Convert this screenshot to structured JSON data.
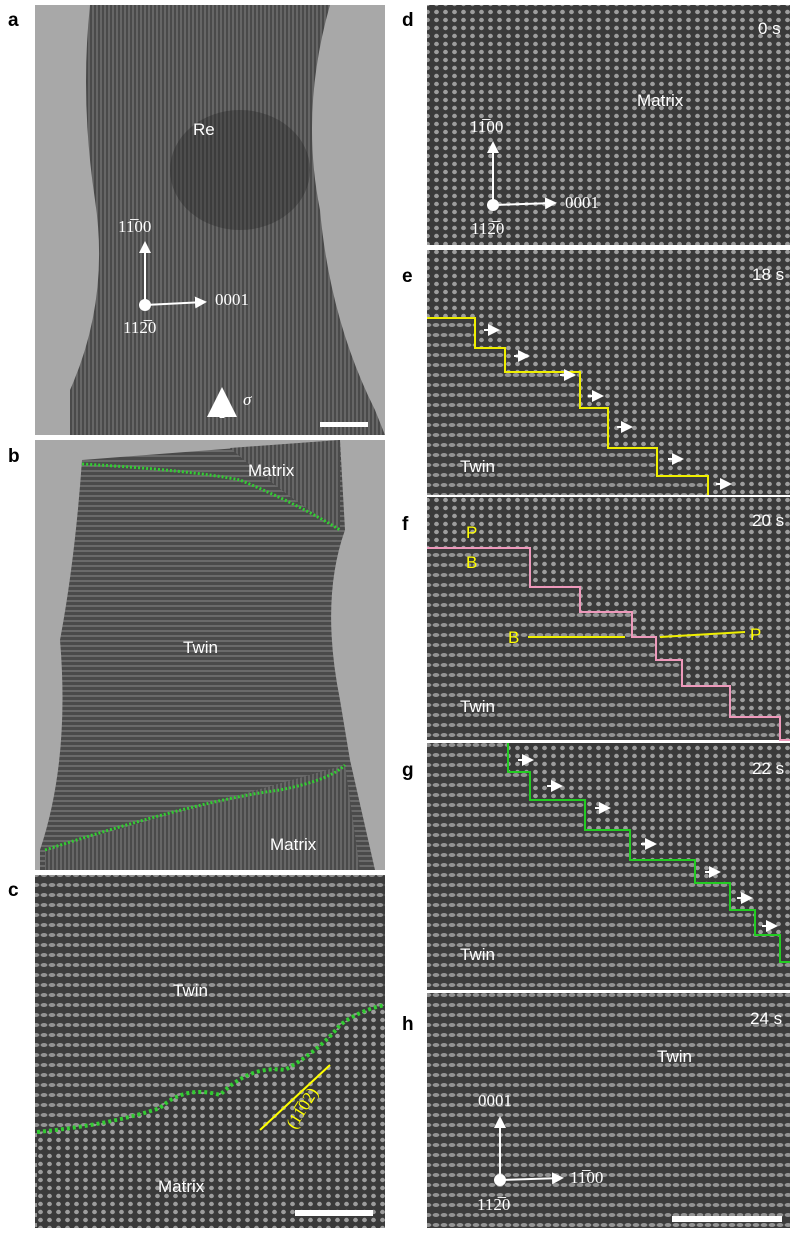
{
  "panels": [
    {
      "letter": "a",
      "labels": [
        "Re",
        "11̅00",
        "0001",
        "112̅0",
        "σ"
      ]
    },
    {
      "letter": "b",
      "labels": [
        "Matrix",
        "Twin",
        "Matrix"
      ]
    },
    {
      "letter": "c",
      "labels": [
        "Twin",
        "(11̅02)",
        "Matrix"
      ]
    },
    {
      "letter": "d",
      "time": "0 s",
      "labels": [
        "Matrix",
        "11̅00",
        "0001",
        "112̅0"
      ]
    },
    {
      "letter": "e",
      "time": "18 s",
      "labels": [
        "Twin"
      ]
    },
    {
      "letter": "f",
      "time": "20 s",
      "labels": [
        "P",
        "B",
        "B",
        "P",
        "Twin"
      ]
    },
    {
      "letter": "g",
      "time": "22 s",
      "labels": [
        "Twin"
      ]
    },
    {
      "letter": "h",
      "time": "24 s",
      "labels": [
        "Twin",
        "0001",
        "11̅00",
        "112̅0"
      ]
    }
  ]
}
